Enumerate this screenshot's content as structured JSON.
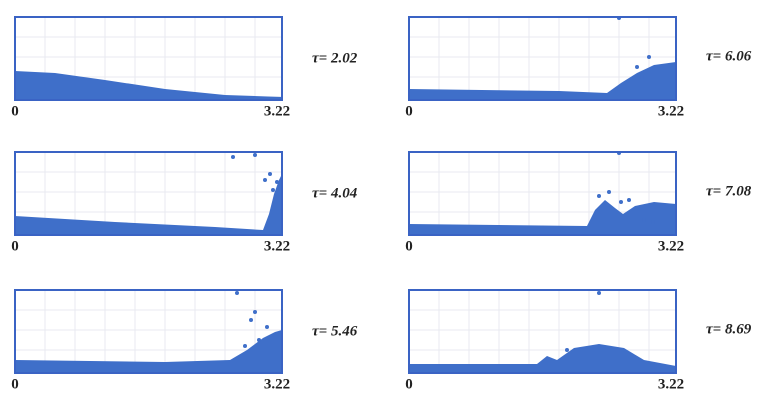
{
  "panels": [
    {
      "label": "τ= 2.02",
      "x_start": "0",
      "x_end": "3.22"
    },
    {
      "label": "τ= 4.04",
      "x_start": "0",
      "x_end": "3.22"
    },
    {
      "label": "τ= 5.46",
      "x_start": "0",
      "x_end": "3.22"
    },
    {
      "label": "τ= 6.06",
      "x_start": "0",
      "x_end": "3.22"
    },
    {
      "label": "τ= 7.08",
      "x_start": "0",
      "x_end": "3.22"
    },
    {
      "label": "τ= 8.69",
      "x_start": "0",
      "x_end": "3.22"
    }
  ]
}
